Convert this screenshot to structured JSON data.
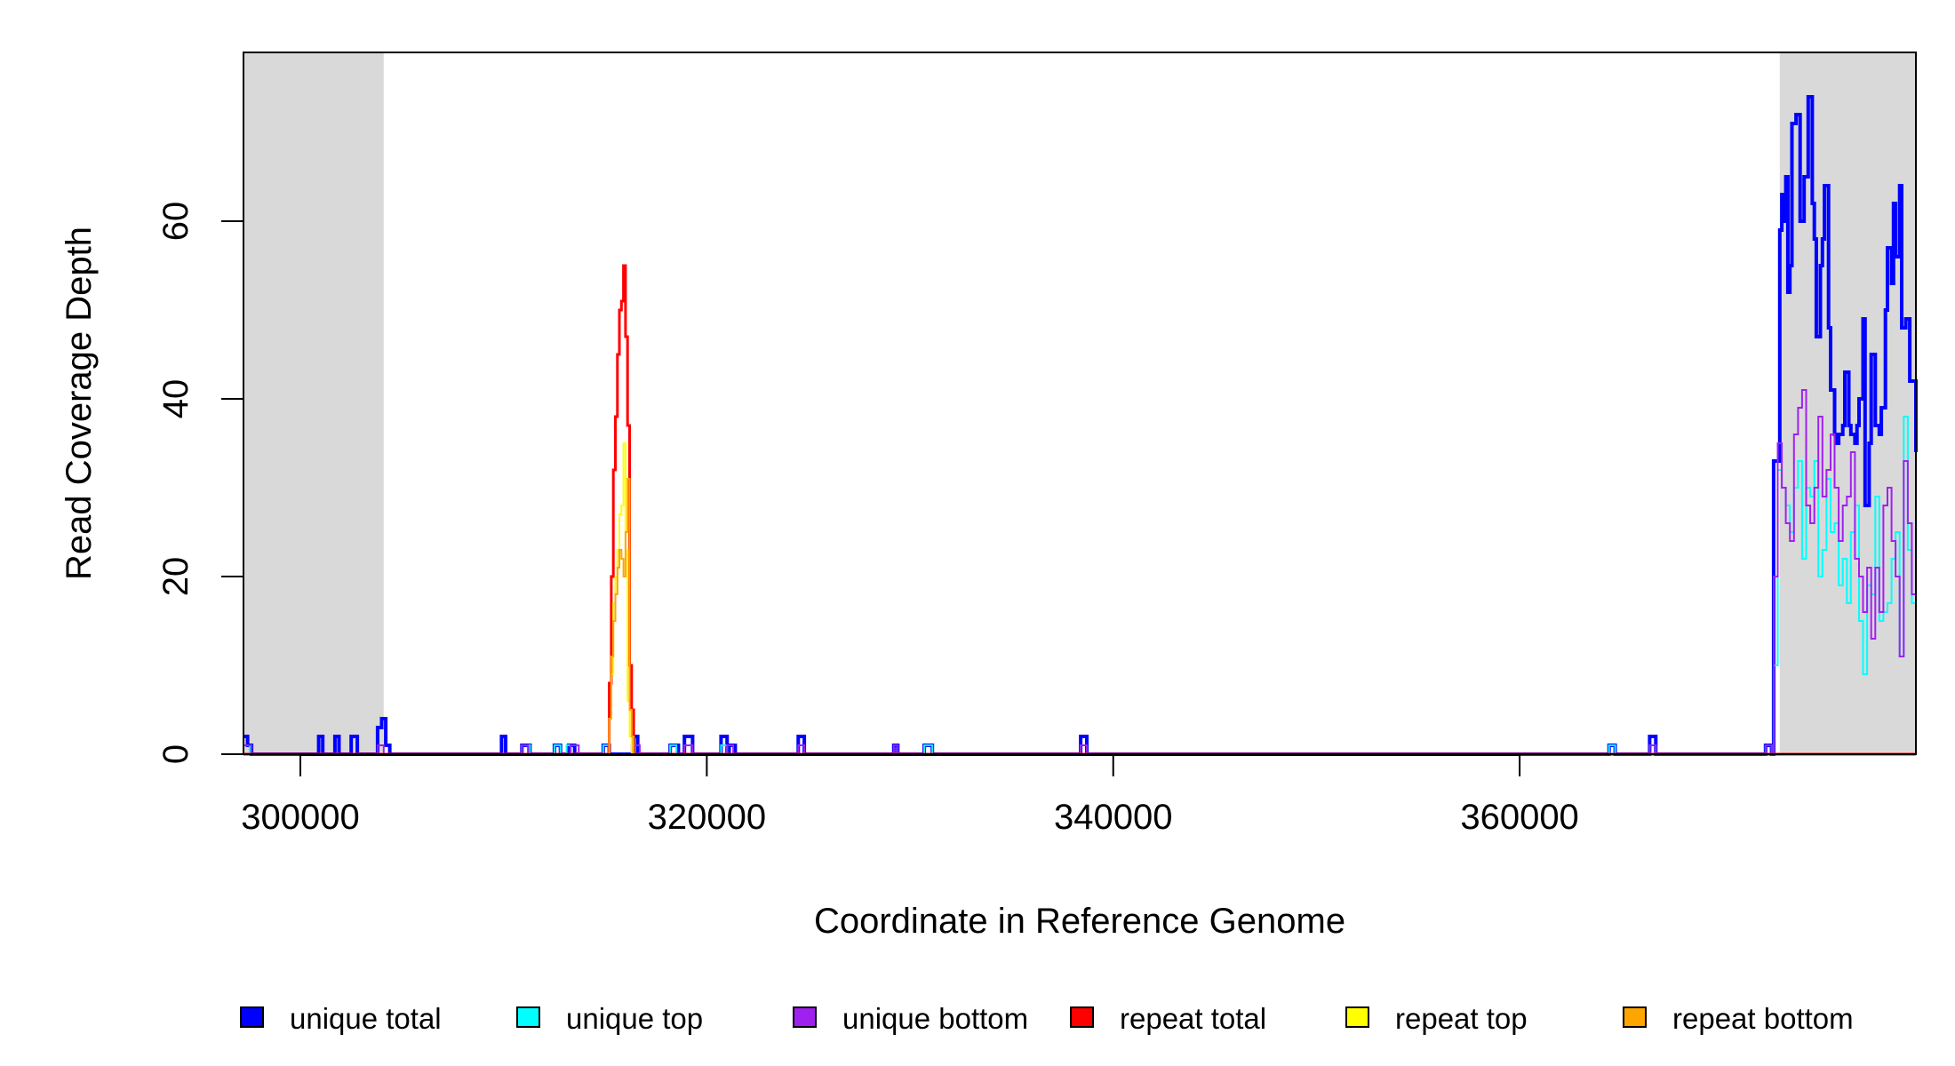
{
  "chart_data": {
    "type": "line",
    "step": true,
    "title": "",
    "xlabel": "Coordinate in Reference Genome",
    "ylabel": "Read Coverage Depth",
    "xlim": [
      297200,
      379500
    ],
    "ylim": [
      0,
      79
    ],
    "xticks": [
      300000,
      320000,
      340000,
      360000
    ],
    "xtick_labels": [
      "300000",
      "320000",
      "340000",
      "360000"
    ],
    "yticks": [
      0,
      20,
      40,
      60
    ],
    "ytick_labels": [
      "0",
      "20",
      "40",
      "60"
    ],
    "grid": false,
    "shaded_regions": [
      {
        "from": 297200,
        "to": 304100,
        "color": "#d9d9d9"
      },
      {
        "from": 372800,
        "to": 379500,
        "color": "#d9d9d9"
      }
    ],
    "legend_position": "bottom",
    "series": [
      {
        "name": "unique total",
        "color": "#0000ff",
        "width": 4,
        "x": [
          297200,
          297400,
          297600,
          300900,
          301100,
          301700,
          301900,
          302500,
          302800,
          303800,
          304000,
          304200,
          304400,
          309900,
          310100,
          310900,
          311300,
          312500,
          312800,
          313200,
          313500,
          314900,
          315200,
          316400,
          316600,
          318200,
          318600,
          318900,
          319300,
          320700,
          321000,
          321100,
          321400,
          324500,
          324800,
          329200,
          329400,
          330700,
          331100,
          338400,
          338700,
          364400,
          364700,
          366400,
          366700,
          372100,
          372400,
          372500,
          372800,
          372900,
          373000,
          373100,
          373200,
          373300,
          373400,
          373600,
          373800,
          374000,
          374200,
          374400,
          374500,
          374600,
          374800,
          374900,
          375000,
          375200,
          375300,
          375500,
          375600,
          375700,
          375900,
          376000,
          376200,
          376300,
          376500,
          376600,
          376700,
          376900,
          377000,
          377200,
          377300,
          377500,
          377700,
          377800,
          378000,
          378100,
          378300,
          378400,
          378500,
          378700,
          378800,
          379000,
          379200,
          379500
        ],
        "y": [
          2,
          1,
          0,
          2,
          0,
          2,
          0,
          2,
          0,
          3,
          4,
          1,
          0,
          2,
          0,
          1,
          0,
          1,
          0,
          1,
          0,
          1,
          0,
          2,
          0,
          1,
          0,
          2,
          0,
          2,
          0,
          1,
          0,
          2,
          0,
          1,
          0,
          1,
          0,
          2,
          0,
          1,
          0,
          2,
          0,
          1,
          0,
          33,
          59,
          63,
          60,
          65,
          52,
          55,
          71,
          72,
          60,
          65,
          74,
          62,
          58,
          47,
          55,
          58,
          64,
          48,
          41,
          36,
          35,
          36,
          37,
          43,
          37,
          36,
          35,
          37,
          40,
          49,
          28,
          35,
          45,
          37,
          36,
          39,
          50,
          57,
          53,
          62,
          56,
          64,
          48,
          49,
          42,
          34
        ]
      },
      {
        "name": "unique top",
        "color": "#00ffff",
        "width": 2,
        "x": [
          297200,
          297500,
          310900,
          311300,
          312500,
          312800,
          313100,
          313300,
          314900,
          315200,
          318200,
          318500,
          320700,
          321000,
          330700,
          331100,
          338400,
          338700,
          364400,
          364700,
          366400,
          366700,
          372100,
          372400,
          372500,
          372700,
          372900,
          373100,
          373300,
          373500,
          373700,
          373900,
          374100,
          374300,
          374500,
          374700,
          374900,
          375100,
          375300,
          375500,
          375700,
          375900,
          376100,
          376300,
          376500,
          376700,
          376900,
          377100,
          377300,
          377500,
          377700,
          377900,
          378100,
          378300,
          378500,
          378700,
          378900,
          379100,
          379300,
          379500
        ],
        "y": [
          1,
          0,
          1,
          0,
          1,
          0,
          1,
          0,
          1,
          0,
          1,
          0,
          1,
          0,
          1,
          0,
          1,
          0,
          1,
          0,
          1,
          0,
          1,
          0,
          10,
          32,
          30,
          28,
          25,
          30,
          33,
          22,
          30,
          29,
          33,
          20,
          23,
          31,
          25,
          26,
          19,
          22,
          17,
          25,
          28,
          15,
          9,
          19,
          18,
          29,
          15,
          16,
          17,
          22,
          25,
          11,
          38,
          23,
          17,
          21
        ]
      },
      {
        "name": "unique bottom",
        "color": "#a020f0",
        "width": 2,
        "x": [
          297200,
          297600,
          303800,
          304100,
          310900,
          311200,
          313300,
          313700,
          316300,
          316700,
          318900,
          319300,
          321000,
          321300,
          324500,
          324800,
          329200,
          329400,
          338400,
          338700,
          366400,
          366700,
          372100,
          372400,
          372500,
          372700,
          372900,
          373100,
          373300,
          373500,
          373700,
          373900,
          374100,
          374300,
          374500,
          374700,
          374900,
          375100,
          375300,
          375500,
          375700,
          375900,
          376100,
          376300,
          376500,
          376700,
          376900,
          377100,
          377300,
          377500,
          377700,
          377900,
          378100,
          378300,
          378500,
          378700,
          378900,
          379100,
          379300,
          379500
        ],
        "y": [
          1,
          0,
          1,
          0,
          1,
          0,
          1,
          0,
          1,
          0,
          1,
          0,
          1,
          0,
          1,
          0,
          1,
          0,
          1,
          0,
          1,
          0,
          1,
          0,
          20,
          35,
          30,
          26,
          24,
          36,
          39,
          41,
          28,
          26,
          30,
          38,
          29,
          32,
          36,
          30,
          24,
          28,
          29,
          34,
          22,
          20,
          16,
          21,
          13,
          21,
          16,
          28,
          30,
          24,
          20,
          11,
          33,
          26,
          18,
          24
        ]
      },
      {
        "name": "repeat total",
        "color": "#ff0000",
        "width": 3,
        "x": [
          297200,
          315100,
          315200,
          315300,
          315400,
          315500,
          315600,
          315700,
          315800,
          315900,
          316000,
          316100,
          316200,
          316300,
          316400,
          316500,
          316600,
          316700,
          379500
        ],
        "y": [
          0,
          0,
          8,
          20,
          32,
          38,
          45,
          50,
          51,
          55,
          47,
          37,
          10,
          5,
          0,
          0,
          0,
          0,
          0
        ]
      },
      {
        "name": "repeat top",
        "color": "#ffff00",
        "width": 2,
        "x": [
          297200,
          315100,
          315200,
          315300,
          315400,
          315500,
          315600,
          315700,
          315800,
          315900,
          316000,
          316100,
          316200,
          316300,
          316400,
          379500
        ],
        "y": [
          0,
          0,
          4,
          9,
          17,
          20,
          23,
          27,
          28,
          35,
          23,
          6,
          2,
          0,
          0,
          0
        ]
      },
      {
        "name": "repeat bottom",
        "color": "#ffa500",
        "width": 2,
        "x": [
          297200,
          315100,
          315200,
          315300,
          315400,
          315500,
          315600,
          315700,
          315800,
          315900,
          316000,
          316100,
          316200,
          316300,
          316400,
          379500
        ],
        "y": [
          0,
          0,
          4,
          11,
          15,
          18,
          21,
          23,
          22,
          20,
          25,
          31,
          5,
          2,
          0,
          0
        ]
      }
    ]
  }
}
